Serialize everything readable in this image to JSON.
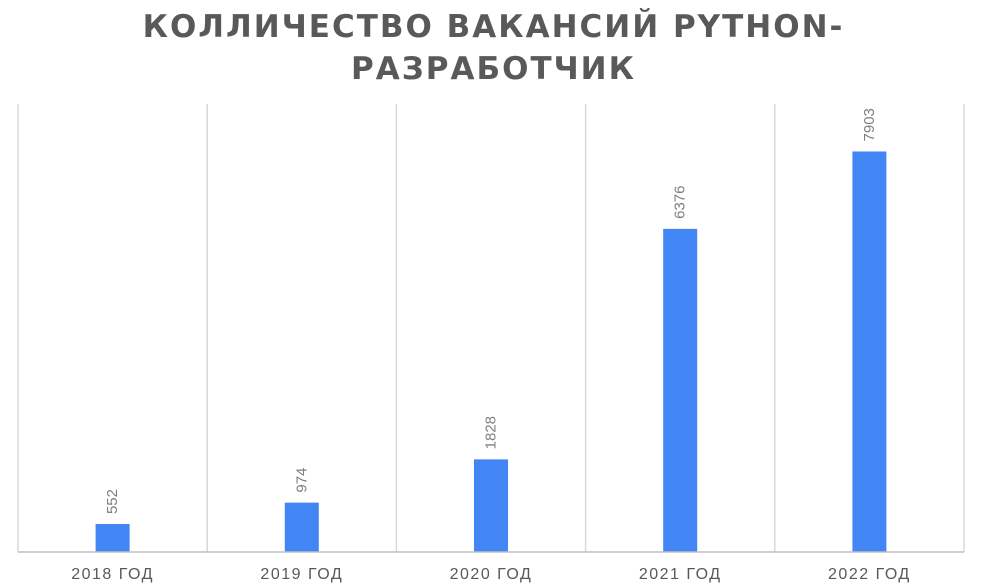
{
  "chart_data": {
    "type": "bar",
    "title_lines": [
      "КОЛЛИЧЕСТВО ВАКАНСИЙ PYTHON-",
      "РАЗРАБОТЧИК"
    ],
    "categories": [
      "2018 ГОД",
      "2019 ГОД",
      "2020 ГОД",
      "2021 ГОД",
      "2022 ГОД"
    ],
    "values": [
      552,
      974,
      1828,
      6376,
      7903
    ],
    "data_labels": [
      "552",
      "974",
      "1828",
      "6376",
      "7903"
    ],
    "xlabel": "",
    "ylabel": "",
    "ylim": [
      0,
      8840
    ],
    "grid": "vertical",
    "legend": "none",
    "colors": {
      "bar": "#4285f4",
      "grid": "#d9d9d9",
      "axis": "#bfbfbf",
      "title": "#595959",
      "data_label": "#7f7f7f",
      "tick_label": "#595959"
    }
  }
}
